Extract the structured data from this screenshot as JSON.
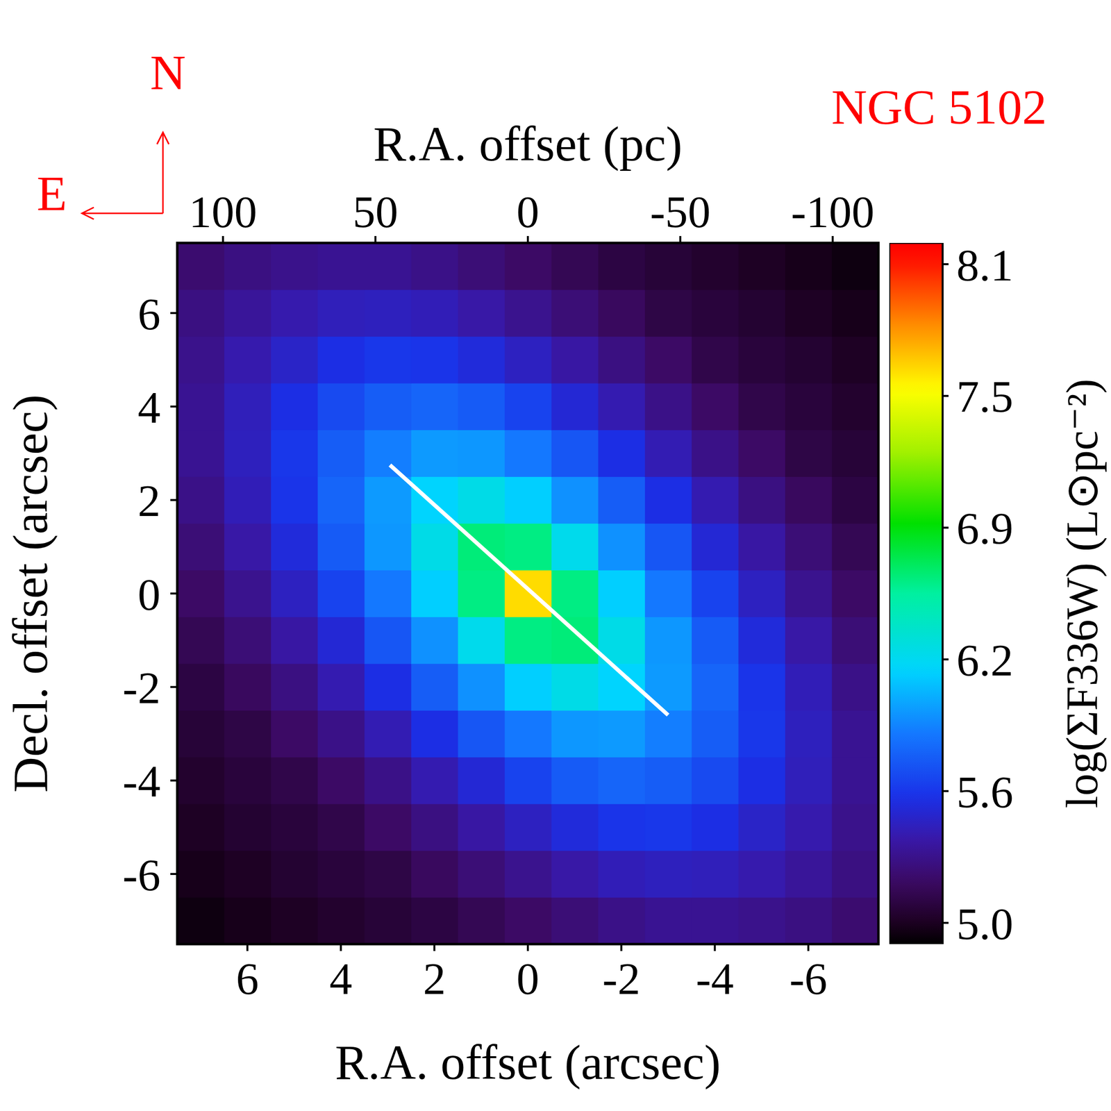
{
  "chart_data": {
    "type": "heatmap",
    "title": "NGC 5102",
    "compass": {
      "north": "N",
      "east": "E"
    },
    "x_label": "R.A. offset (arcsec)",
    "x2_label": "R.A. offset (pc)",
    "y_label": "Decl. offset (arcsec)",
    "xlim": [
      7.5,
      -7.5
    ],
    "xticks": [
      6,
      4,
      2,
      0,
      -2,
      -4,
      -6
    ],
    "x2lim": [
      115,
      -115
    ],
    "x2ticks": [
      100,
      50,
      0,
      -50,
      -100
    ],
    "ylim": [
      -7.5,
      7.5
    ],
    "yticks": [
      -6,
      -4,
      -2,
      0,
      2,
      4,
      6
    ],
    "x": [
      -7,
      -6,
      -5,
      -4,
      -3,
      -2,
      -1,
      0,
      1,
      2,
      3,
      4,
      5,
      6,
      7
    ],
    "y": [
      -7,
      -6,
      -5,
      -4,
      -3,
      -2,
      -1,
      0,
      1,
      2,
      3,
      4,
      5,
      6,
      7
    ],
    "z": [
      [
        5.23,
        5.28,
        5.31,
        5.33,
        5.33,
        5.3,
        5.25,
        5.2,
        5.15,
        5.1,
        5.07,
        5.04,
        5.01,
        4.98,
        4.95
      ],
      [
        5.28,
        5.35,
        5.41,
        5.45,
        5.46,
        5.44,
        5.39,
        5.32,
        5.25,
        5.18,
        5.11,
        5.08,
        5.05,
        5.01,
        4.98
      ],
      [
        5.31,
        5.41,
        5.49,
        5.58,
        5.62,
        5.61,
        5.55,
        5.47,
        5.38,
        5.28,
        5.2,
        5.12,
        5.08,
        5.05,
        5.01
      ],
      [
        5.33,
        5.45,
        5.58,
        5.7,
        5.78,
        5.81,
        5.77,
        5.67,
        5.53,
        5.42,
        5.3,
        5.2,
        5.12,
        5.08,
        5.04
      ],
      [
        5.33,
        5.46,
        5.62,
        5.78,
        5.91,
        6.0,
        5.99,
        5.89,
        5.75,
        5.58,
        5.43,
        5.3,
        5.2,
        5.11,
        5.07
      ],
      [
        5.3,
        5.44,
        5.61,
        5.81,
        6.0,
        6.19,
        6.28,
        6.17,
        5.97,
        5.78,
        5.58,
        5.42,
        5.28,
        5.18,
        5.1
      ],
      [
        5.25,
        5.39,
        5.55,
        5.77,
        5.99,
        6.28,
        6.63,
        6.61,
        6.26,
        5.97,
        5.75,
        5.53,
        5.38,
        5.25,
        5.15
      ],
      [
        5.2,
        5.32,
        5.47,
        5.67,
        5.89,
        6.17,
        6.61,
        7.6,
        6.61,
        6.17,
        5.89,
        5.67,
        5.47,
        5.32,
        5.2
      ],
      [
        5.15,
        5.25,
        5.38,
        5.53,
        5.75,
        5.97,
        6.26,
        6.61,
        6.63,
        6.28,
        5.99,
        5.77,
        5.55,
        5.39,
        5.25
      ],
      [
        5.1,
        5.18,
        5.28,
        5.42,
        5.58,
        5.78,
        5.97,
        6.17,
        6.28,
        6.19,
        6.0,
        5.81,
        5.61,
        5.44,
        5.3
      ],
      [
        5.07,
        5.11,
        5.2,
        5.3,
        5.43,
        5.58,
        5.75,
        5.89,
        5.99,
        6.0,
        5.91,
        5.78,
        5.62,
        5.46,
        5.33
      ],
      [
        5.04,
        5.08,
        5.12,
        5.2,
        5.3,
        5.42,
        5.53,
        5.67,
        5.77,
        5.81,
        5.78,
        5.7,
        5.58,
        5.45,
        5.33
      ],
      [
        5.01,
        5.05,
        5.08,
        5.12,
        5.2,
        5.28,
        5.38,
        5.47,
        5.55,
        5.61,
        5.62,
        5.58,
        5.49,
        5.41,
        5.31
      ],
      [
        4.98,
        5.01,
        5.05,
        5.08,
        5.11,
        5.18,
        5.25,
        5.32,
        5.39,
        5.44,
        5.46,
        5.45,
        5.41,
        5.35,
        5.28
      ],
      [
        4.95,
        4.98,
        5.01,
        5.04,
        5.07,
        5.1,
        5.15,
        5.2,
        5.25,
        5.3,
        5.33,
        5.33,
        5.31,
        5.28,
        5.23
      ]
    ],
    "colorbar": {
      "label": "log(ΣF336W) (L⊙pc⁻²)",
      "range": [
        4.9,
        8.2
      ],
      "ticks": [
        {
          "value": 5.0,
          "label": "5.0"
        },
        {
          "value": 5.62,
          "label": "5.6"
        },
        {
          "value": 6.24,
          "label": "6.2"
        },
        {
          "value": 6.86,
          "label": "6.9"
        },
        {
          "value": 7.48,
          "label": "7.5"
        },
        {
          "value": 8.1,
          "label": "8.1"
        }
      ]
    },
    "lines": [
      {
        "color": "#ffffff",
        "x": [
          2.95,
          -3.0
        ],
        "y": [
          2.75,
          -2.6
        ]
      }
    ]
  }
}
